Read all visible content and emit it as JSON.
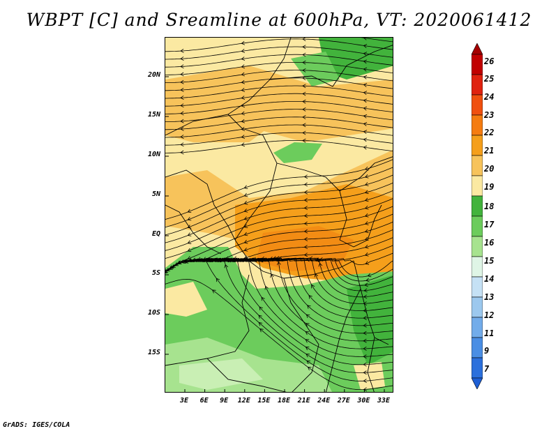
{
  "title": "WBPT [C] and Sreamline at 600hPa, VT: 2020061412",
  "lat_labels": [
    "20N",
    "15N",
    "10N",
    "5N",
    "EQ",
    "5S",
    "10S",
    "15S"
  ],
  "lon_labels": [
    "3E",
    "6E",
    "9E",
    "12E",
    "15E",
    "18E",
    "21E",
    "24E",
    "27E",
    "30E",
    "33E"
  ],
  "colorbar": {
    "labels": [
      "26",
      "25",
      "24",
      "23",
      "22",
      "21",
      "20",
      "19",
      "18",
      "17",
      "16",
      "15",
      "14",
      "13",
      "12",
      "11",
      "9",
      "7"
    ],
    "colors": [
      "#a50000",
      "#c10000",
      "#e0220f",
      "#f0500f",
      "#f57c10",
      "#f59f1b",
      "#f7c35b",
      "#fbe9a2",
      "#42b33c",
      "#6ccc5c",
      "#a7e38f",
      "#dff5e6",
      "#c5e1f5",
      "#9cc8ee",
      "#72acea",
      "#4a8ee4",
      "#2c70dc",
      "#1e5fd4"
    ]
  },
  "field_colors": {
    "warm_light": "#fbe9a2",
    "warm_mid": "#f7c35b",
    "warm_dark": "#f59f1b",
    "green_dark": "#42b33c",
    "green_mid": "#6ccc5c",
    "green_light": "#a7e38f"
  },
  "footer": "GrADS: IGES/COLA"
}
